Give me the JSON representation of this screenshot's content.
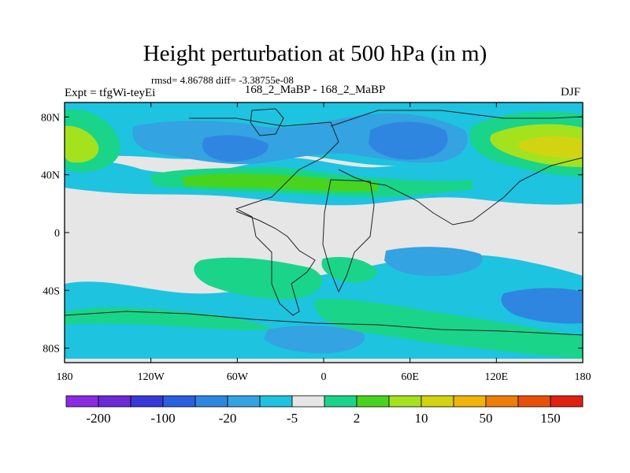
{
  "title": "Height perturbation at 500 hPa (in m)",
  "stats": "rmsd= 4.86788 diff= -3.38755e-08",
  "expt": "Expt = tfgWi-teyEi",
  "run": "168_2_MaBP - 168_2_MaBP",
  "season": "DJF",
  "lat_ticks": [
    {
      "value": 80,
      "label": "80N"
    },
    {
      "value": 40,
      "label": "40N"
    },
    {
      "value": 0,
      "label": "0"
    },
    {
      "value": -40,
      "label": "40S"
    },
    {
      "value": -80,
      "label": "80S"
    }
  ],
  "lon_ticks": [
    {
      "value": -180,
      "label": "180"
    },
    {
      "value": -120,
      "label": "120W"
    },
    {
      "value": -60,
      "label": "60W"
    },
    {
      "value": 0,
      "label": "0"
    },
    {
      "value": 60,
      "label": "60E"
    },
    {
      "value": 120,
      "label": "120E"
    },
    {
      "value": 180,
      "label": "180"
    }
  ],
  "colorbar": {
    "colors": [
      "#8a2be2",
      "#6a2bd6",
      "#3838d8",
      "#2a5fe0",
      "#2e86e0",
      "#33a3e2",
      "#1ec3e0",
      "#e6e6e6",
      "#1ad48a",
      "#48d41e",
      "#a4e21e",
      "#d2d412",
      "#f0b40a",
      "#ee7c08",
      "#e8500a",
      "#e02010"
    ],
    "labels": [
      {
        "boundary": 1,
        "text": "-200"
      },
      {
        "boundary": 3,
        "text": "-100"
      },
      {
        "boundary": 5,
        "text": "-20"
      },
      {
        "boundary": 7,
        "text": "-5"
      },
      {
        "boundary": 9,
        "text": "2"
      },
      {
        "boundary": 11,
        "text": "10"
      },
      {
        "boundary": 13,
        "text": "50"
      },
      {
        "boundary": 15,
        "text": "150"
      }
    ]
  },
  "field_colors": {
    "background": "#e6e6e6",
    "light_blue": "#1ec3e0",
    "mid_blue": "#33a3e2",
    "blue": "#2e86e0",
    "green": "#1ad48a",
    "bright_green": "#48d41e",
    "yellow_green": "#a4e21e",
    "yellow": "#d2d412"
  }
}
